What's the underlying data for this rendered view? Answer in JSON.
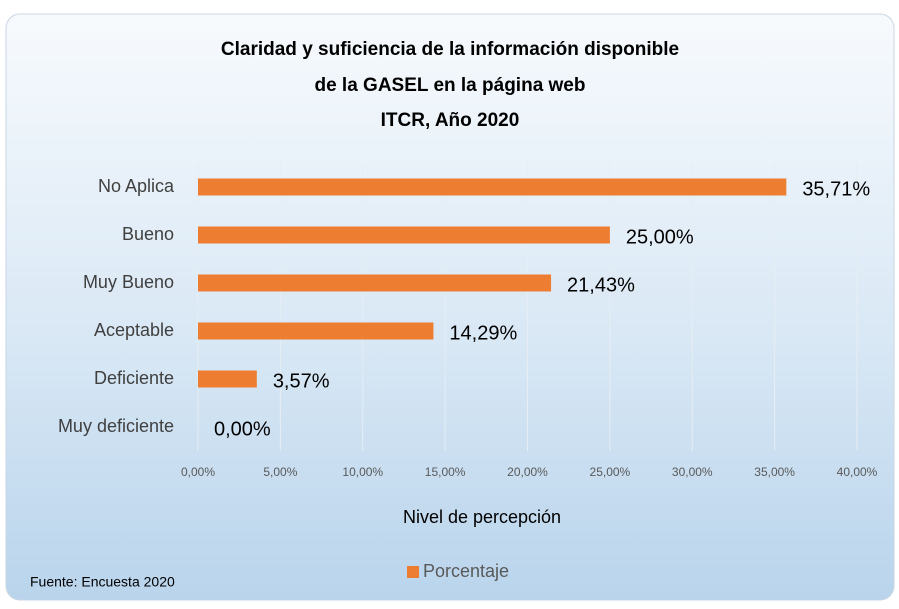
{
  "chart_data": {
    "type": "bar",
    "orientation": "horizontal",
    "title": [
      "Claridad  y suficiencia de la información disponible",
      "de la GASEL  en la página web",
      "ITCR, Año 2020"
    ],
    "categories": [
      "No Aplica",
      "Bueno",
      "Muy Bueno",
      "Aceptable",
      "Deficiente",
      "Muy deficiente"
    ],
    "series": [
      {
        "name": "Porcentaje",
        "color": "#ed7d31",
        "values": [
          35.71,
          25.0,
          21.43,
          14.29,
          3.57,
          0.0
        ],
        "value_labels": [
          "35,71%",
          "25,00%",
          "21,43%",
          "14,29%",
          "3,57%",
          "0,00%"
        ]
      }
    ],
    "xlim": [
      0,
      40
    ],
    "xticks": [
      {
        "value": 0,
        "label": "0,00%"
      },
      {
        "value": 5,
        "label": "5,00%"
      },
      {
        "value": 10,
        "label": "10,00%"
      },
      {
        "value": 15,
        "label": "15,00%"
      },
      {
        "value": 20,
        "label": "20,00%"
      },
      {
        "value": 25,
        "label": "25,00%"
      },
      {
        "value": 30,
        "label": "30,00%"
      },
      {
        "value": 35,
        "label": "35,00%"
      },
      {
        "value": 40,
        "label": "40,00%"
      }
    ],
    "x_label": "Nivel de percepción",
    "grid": true,
    "legend": "bottom",
    "source": "Fuente: Encuesta 2020"
  }
}
